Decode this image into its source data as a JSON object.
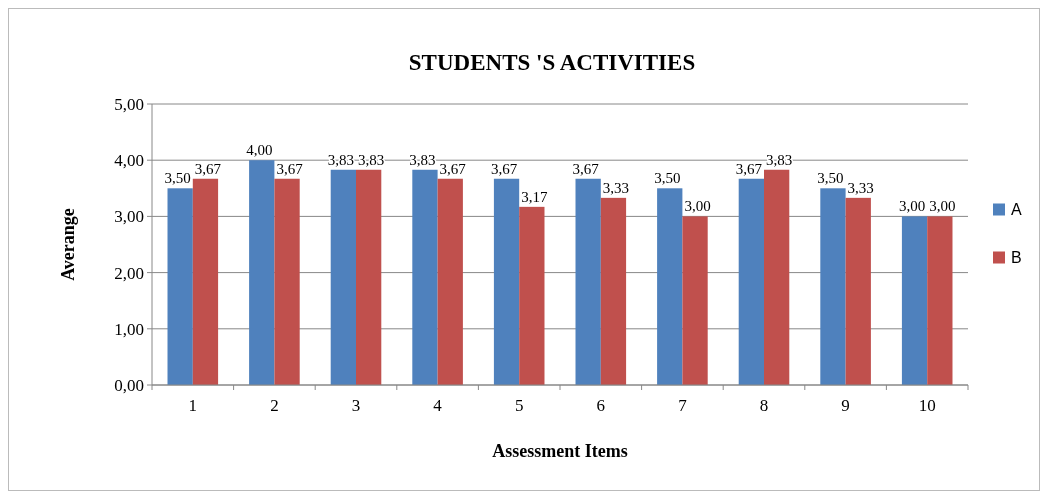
{
  "chart_data": {
    "type": "bar",
    "title": "STUDENTS 'S ACTIVITIES",
    "xlabel": "Assessment Items",
    "ylabel": "Averange",
    "categories": [
      "1",
      "2",
      "3",
      "4",
      "5",
      "6",
      "7",
      "8",
      "9",
      "10"
    ],
    "series": [
      {
        "name": "A",
        "color": "#4f81bd",
        "values": [
          3.5,
          4,
          3.83,
          3.83,
          3.67,
          3.67,
          3.5,
          3.67,
          3.5,
          3
        ],
        "value_labels": [
          "3,50",
          "4,00",
          "3,83",
          "3,83",
          "3,67",
          "3,67",
          "3,50",
          "3,67",
          "3,50",
          "3,00"
        ]
      },
      {
        "name": "B",
        "color": "#c0504d",
        "values": [
          3.67,
          3.67,
          3.83,
          3.67,
          3.17,
          3.33,
          3,
          3.83,
          3.33,
          3
        ],
        "value_labels": [
          "3,67",
          "3,67",
          "3,83",
          "3,67",
          "3,17",
          "3,33",
          "3,00",
          "3,83",
          "3,33",
          "3,00"
        ]
      }
    ],
    "ylim": [
      0,
      5
    ],
    "yticks": [
      {
        "value": 0,
        "label": "0,00"
      },
      {
        "value": 1,
        "label": "1,00"
      },
      {
        "value": 2,
        "label": "2,00"
      },
      {
        "value": 3,
        "label": "3,00"
      },
      {
        "value": 4,
        "label": "4,00"
      },
      {
        "value": 5,
        "label": "5,00"
      }
    ],
    "grid": "y",
    "legend": "right"
  }
}
